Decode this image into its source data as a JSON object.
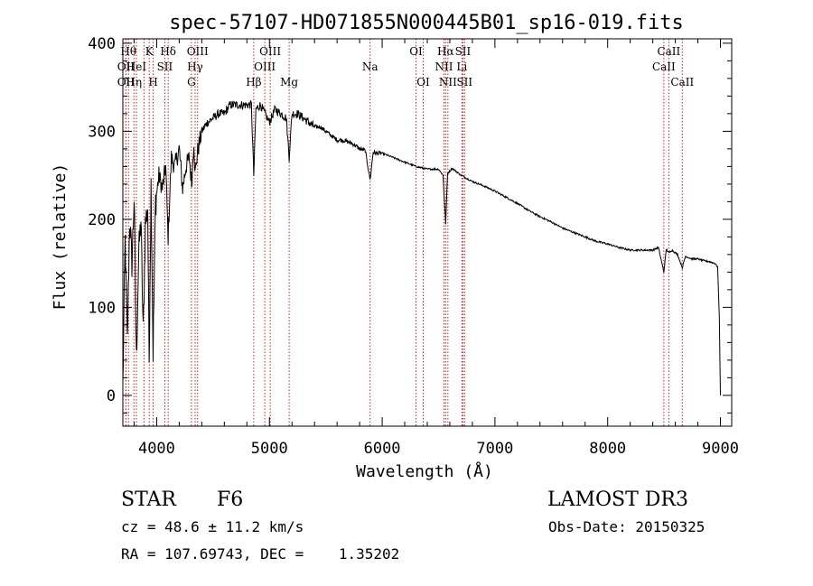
{
  "chart_data": {
    "type": "line",
    "title": "spec-57107-HD071855N000445B01_sp16-019.fits",
    "xlabel": "Wavelength (Å)",
    "ylabel": "Flux (relative)",
    "xlim": [
      3700,
      9100
    ],
    "ylim": [
      -35,
      405
    ],
    "xticks": [
      4000,
      5000,
      6000,
      7000,
      8000,
      9000
    ],
    "yticks": [
      0,
      100,
      200,
      300,
      400
    ],
    "series": [
      {
        "name": "spectrum",
        "x": [
          3700,
          3720,
          3740,
          3760,
          3780,
          3800,
          3820,
          3840,
          3860,
          3880,
          3900,
          3920,
          3933,
          3950,
          3968,
          3990,
          4020,
          4050,
          4080,
          4101,
          4130,
          4160,
          4200,
          4230,
          4260,
          4290,
          4310,
          4330,
          4340,
          4360,
          4400,
          4450,
          4500,
          4550,
          4600,
          4650,
          4700,
          4750,
          4800,
          4840,
          4861,
          4880,
          4920,
          4960,
          5000,
          5050,
          5100,
          5150,
          5175,
          5200,
          5250,
          5300,
          5350,
          5400,
          5450,
          5500,
          5550,
          5600,
          5650,
          5700,
          5750,
          5800,
          5850,
          5893,
          5920,
          5950,
          6000,
          6100,
          6200,
          6300,
          6400,
          6500,
          6540,
          6563,
          6580,
          6620,
          6700,
          6800,
          6900,
          7000,
          7100,
          7200,
          7300,
          7400,
          7500,
          7600,
          7700,
          7800,
          7900,
          8000,
          8100,
          8200,
          8300,
          8400,
          8450,
          8498,
          8520,
          8542,
          8570,
          8620,
          8662,
          8690,
          8750,
          8800,
          8850,
          8900,
          8950,
          8975,
          8990,
          9000
        ],
        "y": [
          10,
          175,
          60,
          200,
          150,
          225,
          40,
          160,
          200,
          70,
          195,
          215,
          40,
          240,
          50,
          220,
          250,
          235,
          260,
          180,
          270,
          260,
          280,
          235,
          260,
          270,
          240,
          290,
          250,
          275,
          300,
          310,
          315,
          320,
          320,
          330,
          330,
          330,
          330,
          330,
          250,
          325,
          330,
          320,
          310,
          325,
          320,
          315,
          270,
          320,
          320,
          315,
          310,
          305,
          305,
          300,
          295,
          290,
          290,
          288,
          285,
          280,
          278,
          245,
          276,
          275,
          275,
          270,
          265,
          260,
          257,
          257,
          250,
          195,
          252,
          258,
          250,
          243,
          238,
          232,
          225,
          218,
          210,
          203,
          197,
          190,
          185,
          180,
          175,
          172,
          168,
          165,
          165,
          165,
          168,
          140,
          166,
          162,
          165,
          160,
          145,
          158,
          155,
          155,
          153,
          152,
          150,
          146,
          90,
          0
        ]
      }
    ],
    "lines": [
      {
        "wavelength": 3750,
        "label": "Hθ",
        "row": 1
      },
      {
        "wavelength": 3727,
        "label": "OII",
        "row": 2
      },
      {
        "wavelength": 3727,
        "label": "OII",
        "row": 3
      },
      {
        "wavelength": 3798,
        "label": "Hη",
        "row": 3
      },
      {
        "wavelength": 3820,
        "label": "HeI",
        "row": 2
      },
      {
        "wavelength": 3889,
        "label": "",
        "row": 0
      },
      {
        "wavelength": 3934,
        "label": "K",
        "row": 1
      },
      {
        "wavelength": 3969,
        "label": "H",
        "row": 3
      },
      {
        "wavelength": 4072,
        "label": "SII",
        "row": 2
      },
      {
        "wavelength": 4102,
        "label": "Hδ",
        "row": 1
      },
      {
        "wavelength": 4308,
        "label": "G",
        "row": 3
      },
      {
        "wavelength": 4341,
        "label": "Hγ",
        "row": 2
      },
      {
        "wavelength": 4363,
        "label": "OIII",
        "row": 1
      },
      {
        "wavelength": 4861,
        "label": "Hβ",
        "row": 3
      },
      {
        "wavelength": 4959,
        "label": "OIII",
        "row": 2
      },
      {
        "wavelength": 5007,
        "label": "OIII",
        "row": 1
      },
      {
        "wavelength": 5175,
        "label": "Mg",
        "row": 3
      },
      {
        "wavelength": 5893,
        "label": "Na",
        "row": 2
      },
      {
        "wavelength": 6300,
        "label": "OI",
        "row": 1
      },
      {
        "wavelength": 6364,
        "label": "OI",
        "row": 3
      },
      {
        "wavelength": 6548,
        "label": "NII",
        "row": 2
      },
      {
        "wavelength": 6563,
        "label": "Hα",
        "row": 1
      },
      {
        "wavelength": 6583,
        "label": "NII",
        "row": 3
      },
      {
        "wavelength": 6707,
        "label": "Li",
        "row": 2
      },
      {
        "wavelength": 6716,
        "label": "SII",
        "row": 1
      },
      {
        "wavelength": 6731,
        "label": "SII",
        "row": 3
      },
      {
        "wavelength": 8498,
        "label": "CaII",
        "row": 2
      },
      {
        "wavelength": 8542,
        "label": "CaII",
        "row": 1
      },
      {
        "wavelength": 8662,
        "label": "CaII",
        "row": 3
      }
    ]
  },
  "info": {
    "object_class": "STAR",
    "subclass": "F6",
    "survey": "LAMOST DR3",
    "cz": "cz = 48.6 ± 11.2 km/s",
    "obs_date": "Obs-Date: 20150325",
    "coords": "RA = 107.69743, DEC =    1.35202"
  },
  "colors": {
    "line_marker": "#c0282a",
    "spectrum": "#000000",
    "axes": "#000000"
  }
}
